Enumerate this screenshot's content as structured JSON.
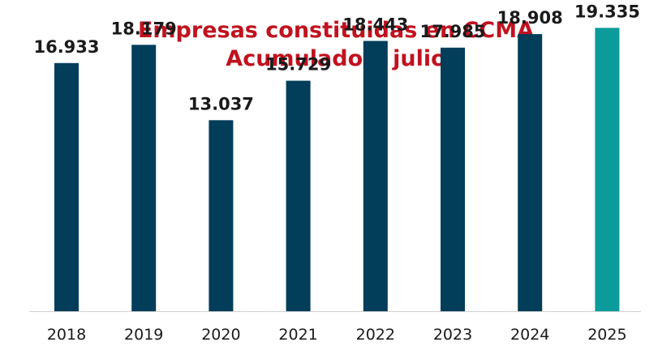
{
  "chart_data": {
    "type": "bar",
    "title": [
      "Empresas constituidas en CCMA",
      "Acumulado a julio"
    ],
    "xlabel": "",
    "ylabel": "",
    "categories": [
      "2018",
      "2019",
      "2020",
      "2021",
      "2022",
      "2023",
      "2024",
      "2025"
    ],
    "values": [
      16933,
      18179,
      13037,
      15729,
      18443,
      17985,
      18908,
      19335
    ],
    "data_labels": [
      "16.933",
      "18.179",
      "13.037",
      "15.729",
      "18.443",
      "17.985",
      "18.908",
      "19.335"
    ],
    "ylim": [
      0,
      20850
    ],
    "grid": false,
    "legend": "none",
    "colors": {
      "title": "#c1121f",
      "bar": "#023d5a",
      "highlight_bar": "#0a9b9a",
      "highlight_category": "2025",
      "label": "#1a1a1a",
      "axis": "#cfcfcf"
    }
  }
}
